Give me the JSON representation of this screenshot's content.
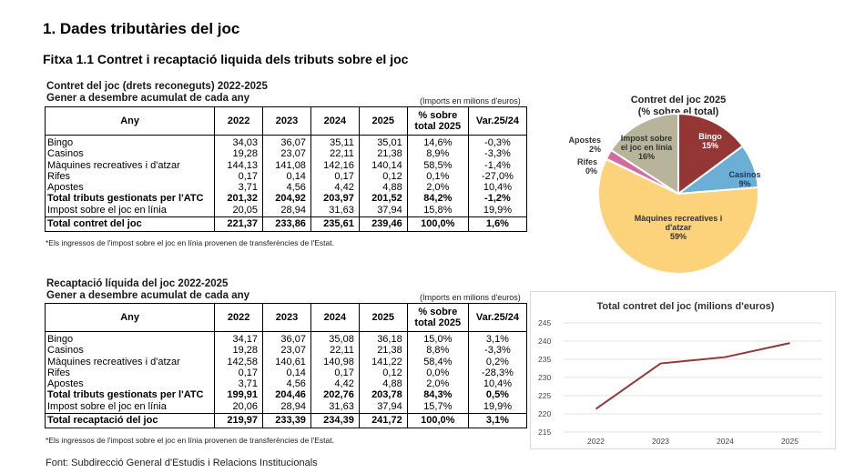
{
  "header": {
    "title": "1. Dades tributàries del joc",
    "subtitle": "Fitxa 1.1 Contret i recaptació liquida dels tributs sobre el joc"
  },
  "table1": {
    "title": "Contret del joc (drets reconeguts) 2022-2025",
    "subtitle": "Gener a desembre acumulat de cada any",
    "units": "(Imports en milions d'euros)",
    "columns": [
      "Any",
      "2022",
      "2023",
      "2024",
      "2025",
      "% sobre total 2025",
      "Var.25/24"
    ],
    "col_pct_line1": "% sobre",
    "col_pct_line2": "total 2025",
    "rows": [
      {
        "label": "Bingo",
        "v2022": "34,03",
        "v2023": "36,07",
        "v2024": "35,11",
        "v2025": "35,01",
        "pct": "14,6%",
        "var": "-0,3%"
      },
      {
        "label": "Casinos",
        "v2022": "19,28",
        "v2023": "23,07",
        "v2024": "22,11",
        "v2025": "21,38",
        "pct": "8,9%",
        "var": "-3,3%"
      },
      {
        "label": "Màquines recreatives i d'atzar",
        "v2022": "144,13",
        "v2023": "141,08",
        "v2024": "142,16",
        "v2025": "140,14",
        "pct": "58,5%",
        "var": "-1,4%"
      },
      {
        "label": "Rifes",
        "v2022": "0,17",
        "v2023": "0,14",
        "v2024": "0,17",
        "v2025": "0,12",
        "pct": "0,1%",
        "var": "-27,0%"
      },
      {
        "label": "Apostes",
        "v2022": "3,71",
        "v2023": "4,56",
        "v2024": "4,42",
        "v2025": "4,88",
        "pct": "2,0%",
        "var": "10,4%"
      },
      {
        "label": "Total tributs gestionats per l'ATC",
        "v2022": "201,32",
        "v2023": "204,92",
        "v2024": "203,97",
        "v2025": "201,52",
        "pct": "84,2%",
        "var": "-1,2%"
      },
      {
        "label": "Impost sobre el joc en línia",
        "v2022": "20,05",
        "v2023": "28,94",
        "v2024": "31,63",
        "v2025": "37,94",
        "pct": "15,8%",
        "var": "19,9%"
      },
      {
        "label": "Total contret del joc",
        "v2022": "221,37",
        "v2023": "233,86",
        "v2024": "235,61",
        "v2025": "239,46",
        "pct": "100,0%",
        "var": "1,6%"
      }
    ],
    "note": "*Els ingressos de l'impost sobre el joc en línia provenen de transferències de l'Estat."
  },
  "table2": {
    "title": "Recaptació líquida del joc 2022-2025",
    "subtitle": "Gener a desembre acumulat de cada any",
    "units": "(Imports en milions d'euros)",
    "columns": [
      "Any",
      "2022",
      "2023",
      "2024",
      "2025",
      "% sobre total 2025",
      "Var.25/24"
    ],
    "col_pct_line1": "% sobre",
    "col_pct_line2": "total 2025",
    "rows": [
      {
        "label": "Bingo",
        "v2022": "34,17",
        "v2023": "36,07",
        "v2024": "35,08",
        "v2025": "36,18",
        "pct": "15,0%",
        "var": "3,1%"
      },
      {
        "label": "Casinos",
        "v2022": "19,28",
        "v2023": "23,07",
        "v2024": "22,11",
        "v2025": "21,38",
        "pct": "8,8%",
        "var": "-3,3%"
      },
      {
        "label": "Màquines recreatives i d'atzar",
        "v2022": "142,58",
        "v2023": "140,61",
        "v2024": "140,98",
        "v2025": "141,22",
        "pct": "58,4%",
        "var": "0,2%"
      },
      {
        "label": "Rifes",
        "v2022": "0,17",
        "v2023": "0,14",
        "v2024": "0,17",
        "v2025": "0,12",
        "pct": "0,0%",
        "var": "-28,3%"
      },
      {
        "label": "Apostes",
        "v2022": "3,71",
        "v2023": "4,56",
        "v2024": "4,42",
        "v2025": "4,88",
        "pct": "2,0%",
        "var": "10,4%"
      },
      {
        "label": "Total tributs gestionats per l'ATC",
        "v2022": "199,91",
        "v2023": "204,46",
        "v2024": "202,76",
        "v2025": "203,78",
        "pct": "84,3%",
        "var": "0,5%"
      },
      {
        "label": "Impost sobre el joc en línia",
        "v2022": "20,06",
        "v2023": "28,94",
        "v2024": "31,63",
        "v2025": "37,94",
        "pct": "15,7%",
        "var": "19,9%"
      },
      {
        "label": "Total recaptació del joc",
        "v2022": "219,97",
        "v2023": "233,39",
        "v2024": "234,39",
        "v2025": "241,72",
        "pct": "100,0%",
        "var": "3,1%"
      }
    ],
    "note": "*Els ingressos de l'impost sobre el joc en línia provenen de transferències de l'Estat."
  },
  "source": "Font: Subdirecció General d'Estudis i Relacions Institucionals",
  "chart_data": [
    {
      "type": "pie",
      "title": "Contret del joc 2025",
      "subtitle": "(% sobre el total)",
      "slices": [
        {
          "name": "Bingo",
          "label_lines": [
            "Bingo"
          ],
          "value": 15,
          "label": "15%",
          "color": "#943634",
          "text_color": "#ffffff"
        },
        {
          "name": "Casinos",
          "label_lines": [
            "Casinos"
          ],
          "value": 9,
          "label": "9%",
          "color": "#6baed6",
          "text_color": "#1f3864"
        },
        {
          "name": "Màquines recreatives i d'atzar",
          "label_lines": [
            "Màquines recreatives i",
            "d'atzar"
          ],
          "value": 59,
          "label": "59%",
          "color": "#fcd27a",
          "text_color": "#333333"
        },
        {
          "name": "Rifes",
          "label_lines": [
            "Rifes"
          ],
          "value": 0.1,
          "label": "0%",
          "color": "#d9d9d9",
          "text_color": "#333333"
        },
        {
          "name": "Apostes",
          "label_lines": [
            "Apostes"
          ],
          "value": 2,
          "label": "2%",
          "color": "#d36ba0",
          "text_color": "#333333"
        },
        {
          "name": "Impost sobre el joc en línia",
          "label_lines": [
            "Impost sobre",
            "el joc en línia"
          ],
          "value": 16,
          "label": "16%",
          "color": "#b7b49b",
          "text_color": "#333333"
        }
      ]
    },
    {
      "type": "line",
      "title": "Total contret del joc (milions d'euros)",
      "categories": [
        "2022",
        "2023",
        "2024",
        "2025"
      ],
      "series": [
        {
          "name": "Total contret del joc",
          "values": [
            221.37,
            233.86,
            235.61,
            239.46
          ],
          "color": "#943634"
        }
      ],
      "ylim": [
        215,
        245
      ],
      "yticks": [
        215,
        220,
        225,
        230,
        235,
        240,
        245
      ],
      "grid": true,
      "legend": "none"
    }
  ]
}
